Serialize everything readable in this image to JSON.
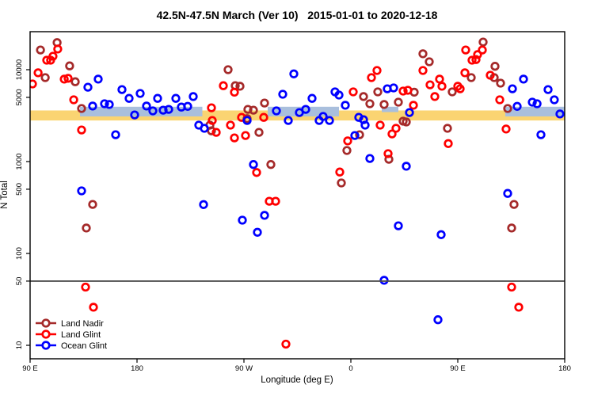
{
  "title": "42.5N-47.5N March (Ver 10)   2015-01-01 to 2020-12-18",
  "chart_data": {
    "type": "scatter",
    "title": "42.5N-47.5N March (Ver 10)   2015-01-01 to 2020-12-18",
    "xlabel": "Longitude (deg E)",
    "ylabel": "N Total",
    "x_axis": {
      "note": "longitude axis wraps eastward starting at 90E; internal units are deg east of 0 running 90..540",
      "ticks": [
        90,
        180,
        270,
        360,
        450,
        540
      ],
      "tick_labels": [
        "90 E",
        "180",
        "90 W",
        "0",
        "90 E",
        "180"
      ],
      "range": [
        90,
        540
      ]
    },
    "y_axis": {
      "scale": "log",
      "ticks": [
        10,
        50,
        100,
        500,
        1000,
        5000,
        10000
      ],
      "tick_labels": [
        "10",
        "50",
        "100",
        "500",
        "1000",
        "5000",
        "10000"
      ],
      "range": [
        7,
        26000
      ]
    },
    "grid": false,
    "reference_line": {
      "y_value": 50,
      "color": "#4D4D4D"
    },
    "bands": [
      {
        "name": "orange-band",
        "color": "#FAD472",
        "n_top": 3600,
        "n_bottom": 2800,
        "segments": [
          [
            90,
            540
          ]
        ],
        "thin_segments": []
      },
      {
        "name": "blue-band",
        "color": "#A9BFDD",
        "n_top": 3950,
        "n_bottom": 3100,
        "segments": [
          [
            132,
            235
          ],
          [
            290,
            350
          ],
          [
            490,
            540
          ]
        ],
        "thin_segments": [
          [
            386,
            400
          ]
        ]
      }
    ],
    "series": [
      {
        "name": "Land Nadir",
        "color": "#A52A2A",
        "points": [
          [
            98.7,
            16400
          ],
          [
            112.7,
            19700
          ],
          [
            123.3,
            11000
          ],
          [
            102.7,
            8200
          ],
          [
            128,
            7400
          ],
          [
            133.3,
            3780
          ],
          [
            256.7,
            10000
          ],
          [
            262.7,
            6700
          ],
          [
            266.7,
            6600
          ],
          [
            273.3,
            3700
          ],
          [
            278,
            3630
          ],
          [
            272.7,
            2930
          ],
          [
            241.3,
            2490
          ],
          [
            242.7,
            2160
          ],
          [
            282.7,
            2080
          ],
          [
            287.3,
            4340
          ],
          [
            292.7,
            930
          ],
          [
            352,
            585
          ],
          [
            356.7,
            1320
          ],
          [
            367.3,
            1960
          ],
          [
            370.7,
            5100
          ],
          [
            376,
            4260
          ],
          [
            388,
            4180
          ],
          [
            400,
            4430
          ],
          [
            382.7,
            5740
          ],
          [
            413.3,
            5690
          ],
          [
            420.7,
            14900
          ],
          [
            426,
            12200
          ],
          [
            404,
            2750
          ],
          [
            406.7,
            2700
          ],
          [
            441.3,
            2300
          ],
          [
            445.3,
            5740
          ],
          [
            392,
            1060
          ],
          [
            471.3,
            20000
          ],
          [
            481.3,
            10900
          ],
          [
            461.3,
            8200
          ],
          [
            486,
            7130
          ],
          [
            480.7,
            8200
          ],
          [
            492,
            3780
          ],
          [
            495.3,
            189
          ],
          [
            497.3,
            342
          ],
          [
            142.7,
            342
          ],
          [
            137.3,
            189
          ]
        ]
      },
      {
        "name": "Land Glint",
        "color": "#FF0000",
        "points": [
          [
            113.3,
            16800
          ],
          [
            109.3,
            14000
          ],
          [
            104,
            12700
          ],
          [
            107.3,
            12700
          ],
          [
            96.7,
            9250
          ],
          [
            92,
            7000
          ],
          [
            118.7,
            7900
          ],
          [
            122,
            8050
          ],
          [
            126.7,
            4700
          ],
          [
            133.3,
            2210
          ],
          [
            136.7,
            43
          ],
          [
            143.3,
            26
          ],
          [
            243.3,
            2800
          ],
          [
            242.7,
            3850
          ],
          [
            246.7,
            2080
          ],
          [
            258.7,
            2490
          ],
          [
            262,
            1810
          ],
          [
            252.7,
            6700
          ],
          [
            262,
            5690
          ],
          [
            268,
            3030
          ],
          [
            286.7,
            3030
          ],
          [
            271.3,
            1920
          ],
          [
            280.7,
            760
          ],
          [
            305.3,
            10.3
          ],
          [
            350.7,
            770
          ],
          [
            357.3,
            1680
          ],
          [
            362,
            5740
          ],
          [
            382,
            9800
          ],
          [
            377.3,
            8200
          ],
          [
            384.7,
            2490
          ],
          [
            391.3,
            1220
          ],
          [
            394.7,
            2000
          ],
          [
            398,
            2300
          ],
          [
            404,
            5850
          ],
          [
            408,
            5970
          ],
          [
            412.7,
            4100
          ],
          [
            420.7,
            9800
          ],
          [
            426.7,
            6850
          ],
          [
            430.7,
            5100
          ],
          [
            434.7,
            7900
          ],
          [
            436.7,
            6600
          ],
          [
            442,
            1570
          ],
          [
            450,
            6600
          ],
          [
            452,
            6200
          ],
          [
            456.7,
            16400
          ],
          [
            470.7,
            16400
          ],
          [
            466.7,
            14600
          ],
          [
            465.3,
            12900
          ],
          [
            462,
            12700
          ],
          [
            456,
            9250
          ],
          [
            477.3,
            8700
          ],
          [
            485.3,
            4700
          ],
          [
            490.7,
            2260
          ],
          [
            495.3,
            43
          ],
          [
            501.3,
            26
          ],
          [
            291.3,
            370
          ],
          [
            296.7,
            370
          ]
        ]
      },
      {
        "name": "Ocean Glint",
        "color": "#0000FF",
        "points": [
          [
            147.3,
            7900
          ],
          [
            138.7,
            6450
          ],
          [
            152.7,
            4260
          ],
          [
            156.7,
            4180
          ],
          [
            142.7,
            4020
          ],
          [
            167.3,
            6080
          ],
          [
            173.3,
            4870
          ],
          [
            178,
            3220
          ],
          [
            162,
            1960
          ],
          [
            182.7,
            5510
          ],
          [
            197.3,
            4870
          ],
          [
            188,
            4020
          ],
          [
            193.3,
            3560
          ],
          [
            202,
            3630
          ],
          [
            206.7,
            3700
          ],
          [
            212.7,
            4870
          ],
          [
            217.3,
            3920
          ],
          [
            222.7,
            3990
          ],
          [
            227.3,
            5100
          ],
          [
            232,
            2490
          ],
          [
            236.7,
            2300
          ],
          [
            272.7,
            2800
          ],
          [
            278,
            930
          ],
          [
            297.3,
            3560
          ],
          [
            302.7,
            5400
          ],
          [
            312,
            9000
          ],
          [
            327.3,
            4870
          ],
          [
            307.3,
            2800
          ],
          [
            316.7,
            3420
          ],
          [
            322,
            3700
          ],
          [
            333.3,
            2800
          ],
          [
            336.7,
            3100
          ],
          [
            342,
            2800
          ],
          [
            346.7,
            5740
          ],
          [
            350,
            5300
          ],
          [
            355.3,
            4100
          ],
          [
            363.3,
            1920
          ],
          [
            366.7,
            3030
          ],
          [
            370.7,
            2860
          ],
          [
            372,
            2490
          ],
          [
            376,
            1080
          ],
          [
            390.7,
            6200
          ],
          [
            396,
            6330
          ],
          [
            409.3,
            3420
          ],
          [
            406.7,
            890
          ],
          [
            433.3,
            19
          ],
          [
            388,
            51
          ],
          [
            400,
            200
          ],
          [
            436,
            160
          ],
          [
            492,
            450
          ],
          [
            496,
            6200
          ],
          [
            505.3,
            7900
          ],
          [
            526,
            6080
          ],
          [
            531.3,
            4700
          ],
          [
            512.7,
            4430
          ],
          [
            516.7,
            4260
          ],
          [
            500,
            3990
          ],
          [
            536,
            3300
          ],
          [
            520,
            1960
          ],
          [
            133.3,
            480
          ],
          [
            236,
            340
          ],
          [
            268.7,
            230
          ],
          [
            287.3,
            260
          ],
          [
            281.3,
            170
          ]
        ]
      }
    ],
    "legend_position": "bottom-left-inside"
  },
  "legend": {
    "items": [
      {
        "label": "Land Nadir",
        "color": "#A52A2A"
      },
      {
        "label": "Land Glint",
        "color": "#FF0000"
      },
      {
        "label": "Ocean Glint",
        "color": "#0000FF"
      }
    ]
  }
}
